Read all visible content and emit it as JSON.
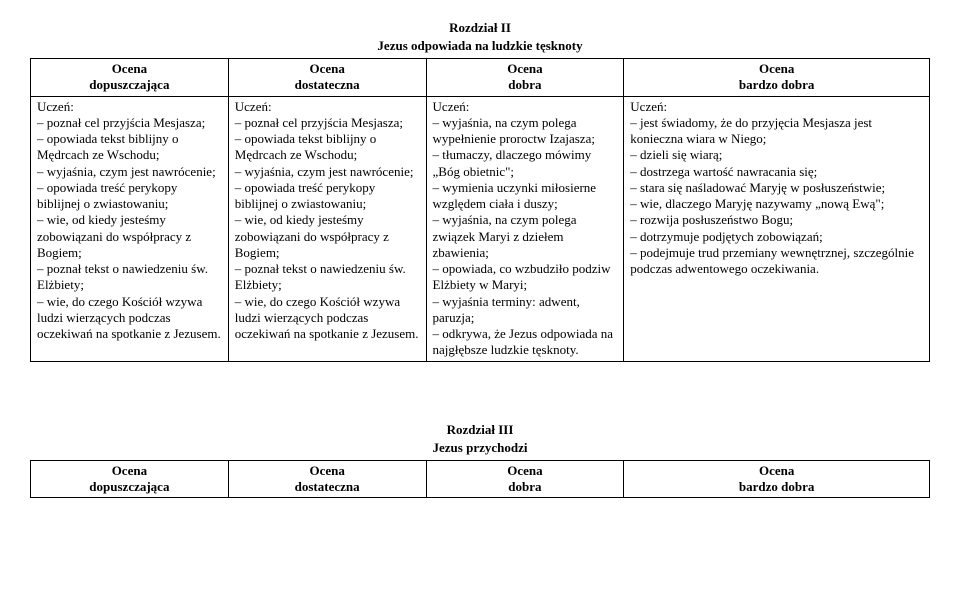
{
  "chapter2": {
    "title": "Rozdział II",
    "subtitle": "Jezus odpowiada na ludzkie tęsknoty",
    "headers": [
      {
        "line1": "Ocena",
        "line2": "dopuszczająca"
      },
      {
        "line1": "Ocena",
        "line2": "dostateczna"
      },
      {
        "line1": "Ocena",
        "line2": "dobra"
      },
      {
        "line1": "Ocena",
        "line2": "bardzo dobra"
      }
    ],
    "cells": [
      "Uczeń:\n– poznał cel przyjścia Mesjasza;\n– opowiada tekst biblijny o Mędrcach ze Wschodu;\n– wyjaśnia, czym jest nawrócenie;\n– opowiada treść perykopy biblijnej o zwiastowaniu;\n– wie, od kiedy jesteśmy zobowiązani do współpracy z Bogiem;\n– poznał tekst o nawiedzeniu św. Elżbiety;\n– wie, do czego Kościół wzywa ludzi wierzących podczas oczekiwań na spotkanie z Jezusem.",
      "Uczeń:\n– poznał cel przyjścia Mesjasza;\n– opowiada tekst biblijny o Mędrcach ze Wschodu;\n– wyjaśnia, czym jest nawrócenie;\n– opowiada treść perykopy biblijnej o zwiastowaniu;\n– wie, od kiedy jesteśmy zobowiązani do współpracy z Bogiem;\n– poznał tekst o nawiedzeniu św. Elżbiety;\n– wie, do czego Kościół wzywa ludzi wierzących podczas oczekiwań na spotkanie z Jezusem.",
      "Uczeń:\n– wyjaśnia, na czym polega wypełnienie proroctw Izajasza;\n– tłumaczy, dlaczego mówimy „Bóg obietnic\";\n– wymienia uczynki miłosierne względem ciała i duszy;\n– wyjaśnia, na czym polega związek Maryi z dziełem zbawienia;\n– opowiada, co wzbudziło podziw Elżbiety w Maryi;\n– wyjaśnia terminy: adwent, paruzja;\n– odkrywa, że Jezus odpowiada na najgłębsze ludzkie tęsknoty.",
      "Uczeń:\n– jest świadomy, że do przyjęcia Mesjasza jest konieczna wiara w Niego;\n– dzieli się wiarą;\n– dostrzega wartość nawracania się;\n– stara się naśladować Maryję w posłuszeństwie;\n– wie, dlaczego Maryję nazywamy „nową Ewą\";\n– rozwija posłuszeństwo Bogu;\n– dotrzymuje podjętych zobowiązań;\n– podejmuje trud przemiany wewnętrznej, szczególnie podczas adwentowego oczekiwania."
    ]
  },
  "chapter3": {
    "title": "Rozdział III",
    "subtitle": "Jezus przychodzi",
    "headers": [
      {
        "line1": "Ocena",
        "line2": "dopuszczająca"
      },
      {
        "line1": "Ocena",
        "line2": "dostateczna"
      },
      {
        "line1": "Ocena",
        "line2": "dobra"
      },
      {
        "line1": "Ocena",
        "line2": "bardzo dobra"
      }
    ]
  }
}
